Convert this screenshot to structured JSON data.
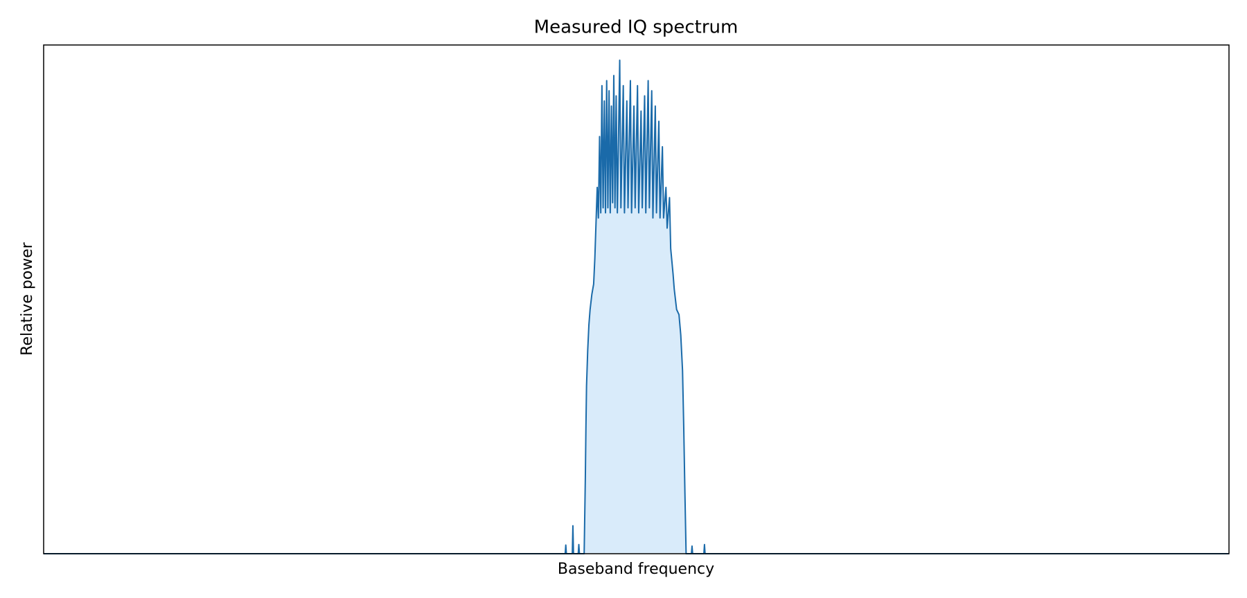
{
  "chart_data": {
    "type": "line",
    "title": "Measured IQ spectrum",
    "x_label": "Baseband frequency",
    "y_label": "Relative power",
    "xlim": [
      -1,
      1
    ],
    "ylim": [
      0,
      1
    ],
    "grid": false,
    "fill": true,
    "series": [
      {
        "color": "#1a6aa9",
        "fill_color": "#d9ebfa",
        "x": [
          -1,
          -0.12,
          -0.119,
          -0.118,
          -0.108,
          -0.107,
          -0.106,
          -0.098,
          -0.097,
          -0.096,
          -0.088,
          -0.086,
          -0.085,
          -0.084,
          -0.082,
          -0.08,
          -0.078,
          -0.075,
          -0.072,
          -0.07,
          -0.068,
          -0.066,
          -0.064,
          -0.062,
          -0.06,
          -0.058,
          -0.056,
          -0.054,
          -0.052,
          -0.05,
          -0.048,
          -0.046,
          -0.044,
          -0.042,
          -0.04,
          -0.038,
          -0.036,
          -0.034,
          -0.032,
          -0.028,
          -0.026,
          -0.022,
          -0.02,
          -0.016,
          -0.014,
          -0.01,
          -0.008,
          -0.004,
          -0.002,
          0.002,
          0.004,
          0.008,
          0.01,
          0.014,
          0.016,
          0.02,
          0.022,
          0.026,
          0.028,
          0.032,
          0.034,
          0.038,
          0.04,
          0.044,
          0.046,
          0.05,
          0.052,
          0.056,
          0.058,
          0.062,
          0.064,
          0.066,
          0.068,
          0.072,
          0.075,
          0.078,
          0.08,
          0.082,
          0.084,
          0.093,
          0.094,
          0.095,
          0.114,
          0.115,
          0.116,
          1
        ],
        "y": [
          0,
          0,
          0.017,
          0,
          0,
          0.055,
          0,
          0,
          0.018,
          0,
          0,
          0.15,
          0.25,
          0.33,
          0.4,
          0.45,
          0.48,
          0.51,
          0.53,
          0.58,
          0.65,
          0.72,
          0.66,
          0.82,
          0.67,
          0.92,
          0.68,
          0.89,
          0.67,
          0.93,
          0.68,
          0.91,
          0.67,
          0.88,
          0.69,
          0.94,
          0.68,
          0.9,
          0.67,
          0.97,
          0.68,
          0.92,
          0.67,
          0.89,
          0.68,
          0.93,
          0.67,
          0.88,
          0.68,
          0.92,
          0.67,
          0.87,
          0.68,
          0.9,
          0.67,
          0.93,
          0.68,
          0.91,
          0.66,
          0.88,
          0.67,
          0.85,
          0.66,
          0.8,
          0.66,
          0.72,
          0.64,
          0.7,
          0.6,
          0.55,
          0.52,
          0.5,
          0.48,
          0.47,
          0.43,
          0.36,
          0.25,
          0.12,
          0,
          0,
          0.015,
          0,
          0,
          0.018,
          0,
          0
        ]
      }
    ]
  }
}
